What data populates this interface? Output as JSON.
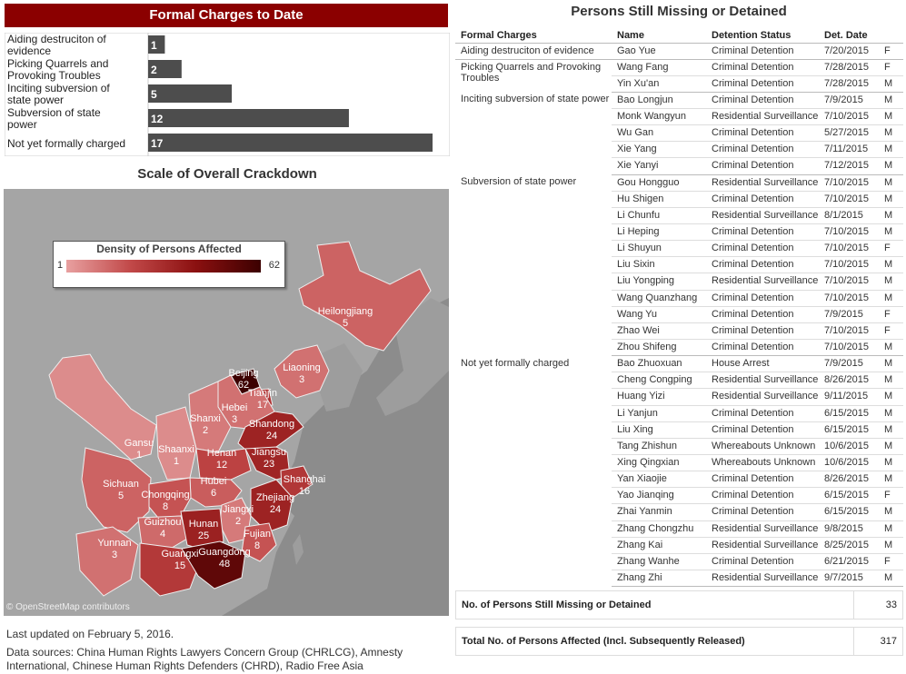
{
  "charges_panel": {
    "title": "Formal Charges to Date"
  },
  "crackdown_panel": {
    "title": "Scale of Overall Crackdown",
    "legend": {
      "title": "Density of Persons Affected",
      "min_label": "1",
      "max_label": "62"
    },
    "map_credit": "© OpenStreetMap contributors"
  },
  "footer": {
    "last_updated": "Last updated on February 5, 2016.",
    "sources": "Data sources: China Human Rights Lawyers Concern Group (CHRLCG), Amnesty International, Chinese Human Rights Defenders (CHRD), Radio Free Asia"
  },
  "missing_panel": {
    "title": "Persons Still Missing or Detained",
    "columns": [
      "Formal Charges",
      "Name",
      "Detention Status",
      "Det. Date",
      ""
    ],
    "groups": [
      {
        "charge": "Aiding destruciton of evidence",
        "rows": [
          [
            "Gao Yue",
            "Criminal Detention",
            "7/20/2015",
            "F"
          ]
        ]
      },
      {
        "charge": "Picking Quarrels and Provoking Troubles",
        "rows": [
          [
            "Wang Fang",
            "Criminal Detention",
            "7/28/2015",
            "F"
          ],
          [
            "Yin Xu'an",
            "Criminal Detention",
            "7/28/2015",
            "M"
          ]
        ]
      },
      {
        "charge": "Inciting subversion of state power",
        "rows": [
          [
            "Bao Longjun",
            "Criminal Detention",
            "7/9/2015",
            "M"
          ],
          [
            "Monk Wangyun",
            "Residential Surveillance",
            "7/10/2015",
            "M"
          ],
          [
            "Wu Gan",
            "Criminal Detention",
            "5/27/2015",
            "M"
          ],
          [
            "Xie Yang",
            "Criminal Detention",
            "7/11/2015",
            "M"
          ],
          [
            "Xie Yanyi",
            "Criminal Detention",
            "7/12/2015",
            "M"
          ]
        ]
      },
      {
        "charge": "Subversion of state power",
        "rows": [
          [
            "Gou Hongguo",
            "Residential Surveillance",
            "7/10/2015",
            "M"
          ],
          [
            "Hu Shigen",
            "Criminal Detention",
            "7/10/2015",
            "M"
          ],
          [
            "Li Chunfu",
            "Residential Surveillance",
            "8/1/2015",
            "M"
          ],
          [
            "Li Heping",
            "Criminal Detention",
            "7/10/2015",
            "M"
          ],
          [
            "Li Shuyun",
            "Criminal Detention",
            "7/10/2015",
            "F"
          ],
          [
            "Liu Sixin",
            "Criminal Detention",
            "7/10/2015",
            "M"
          ],
          [
            "Liu Yongping",
            "Residential Surveillance",
            "7/10/2015",
            "M"
          ],
          [
            "Wang Quanzhang",
            "Criminal Detention",
            "7/10/2015",
            "M"
          ],
          [
            "Wang Yu",
            "Criminal Detention",
            "7/9/2015",
            "F"
          ],
          [
            "Zhao Wei",
            "Criminal Detention",
            "7/10/2015",
            "F"
          ],
          [
            "Zhou Shifeng",
            "Criminal Detention",
            "7/10/2015",
            "M"
          ]
        ]
      },
      {
        "charge": "Not yet formally charged",
        "rows": [
          [
            "Bao Zhuoxuan",
            "House Arrest",
            "7/9/2015",
            "M"
          ],
          [
            "Cheng Congping",
            "Residential Surveillance",
            "8/26/2015",
            "M"
          ],
          [
            "Huang Yizi",
            "Residential Surveillance",
            "9/11/2015",
            "M"
          ],
          [
            "Li Yanjun",
            "Criminal Detention",
            "6/15/2015",
            "M"
          ],
          [
            "Liu Xing",
            "Criminal Detention",
            "6/15/2015",
            "M"
          ],
          [
            "Tang Zhishun",
            "Whereabouts Unknown",
            "10/6/2015",
            "M"
          ],
          [
            "Xing Qingxian",
            "Whereabouts Unknown",
            "10/6/2015",
            "M"
          ],
          [
            "Yan Xiaojie",
            "Criminal Detention",
            "8/26/2015",
            "M"
          ],
          [
            "Yao Jianqing",
            "Criminal Detention",
            "6/15/2015",
            "F"
          ],
          [
            "Zhai Yanmin",
            "Criminal Detention",
            "6/15/2015",
            "M"
          ],
          [
            "Zhang Chongzhu",
            "Residential Surveillance",
            "9/8/2015",
            "M"
          ],
          [
            "Zhang Kai",
            "Residential Surveillance",
            "8/25/2015",
            "M"
          ],
          [
            "Zhang Wanhe",
            "Criminal Detention",
            "6/21/2015",
            "F"
          ],
          [
            "Zhang Zhi",
            "Residential Surveillance",
            "9/7/2015",
            "M"
          ]
        ]
      }
    ],
    "summary": [
      {
        "label": "No. of Persons Still Missing or Detained",
        "value": "33"
      },
      {
        "label": "Total No. of Persons Affected (Incl. Subsequently Released)",
        "value": "317"
      }
    ]
  },
  "colors": {
    "header_bg": "#8b0000",
    "bar": "#4d4d4d",
    "map_bg": "#8c8c8c",
    "low": "#d98080",
    "high": "#3c0000"
  },
  "chart_data": [
    {
      "type": "bar",
      "orientation": "horizontal",
      "title": "Formal Charges to Date",
      "categories": [
        "Aiding destruciton of evidence",
        "Picking Quarrels and Provoking Troubles",
        "Inciting subversion of state power",
        "Subversion of state power",
        "Not yet formally charged"
      ],
      "values": [
        1,
        2,
        5,
        12,
        17
      ]
    },
    {
      "type": "heatmap",
      "subtype": "choropleth",
      "title": "Scale of Overall Crackdown",
      "legend_title": "Density of Persons Affected",
      "range": [
        1,
        62
      ],
      "regions": [
        {
          "name": "Heilongjiang",
          "value": 5
        },
        {
          "name": "Liaoning",
          "value": 3
        },
        {
          "name": "Beijing",
          "value": 62
        },
        {
          "name": "Tianjin",
          "value": 17
        },
        {
          "name": "Hebei",
          "value": 3
        },
        {
          "name": "Shanxi",
          "value": 2
        },
        {
          "name": "Shandong",
          "value": 24
        },
        {
          "name": "Gansu",
          "value": 1
        },
        {
          "name": "Shaanxi",
          "value": 1
        },
        {
          "name": "Henan",
          "value": 12
        },
        {
          "name": "Jiangsu",
          "value": 23
        },
        {
          "name": "Shanghai",
          "value": 16
        },
        {
          "name": "Sichuan",
          "value": 5
        },
        {
          "name": "Hubei",
          "value": 6
        },
        {
          "name": "Chongqing",
          "value": 8
        },
        {
          "name": "Zhejiang",
          "value": 24
        },
        {
          "name": "Jiangxi",
          "value": 2
        },
        {
          "name": "Guizhou",
          "value": 4
        },
        {
          "name": "Hunan",
          "value": 25
        },
        {
          "name": "Fujian",
          "value": 8
        },
        {
          "name": "Yunnan",
          "value": 3
        },
        {
          "name": "Guangxi",
          "value": 15
        },
        {
          "name": "Guangdong",
          "value": 48
        }
      ]
    }
  ]
}
